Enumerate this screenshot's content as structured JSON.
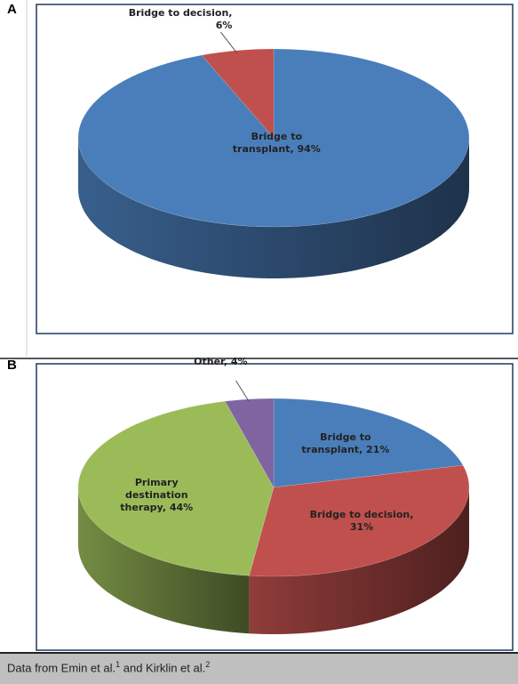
{
  "chart_data": [
    {
      "type": "pie",
      "panel": "A",
      "values": [
        94,
        6
      ],
      "value_labels": [
        "Bridge to transplant, 94%",
        "Bridge to decision, 6%"
      ],
      "colors": [
        "#4a7ebb",
        "#c0504d"
      ]
    },
    {
      "type": "pie",
      "panel": "B",
      "values": [
        21,
        31,
        44,
        4
      ],
      "value_labels": [
        "Bridge to transplant, 21%",
        "Bridge to decision, 31%",
        "Primary destination therapy, 44%",
        "Other, 4%"
      ],
      "colors": [
        "#4a7ebb",
        "#c0504d",
        "#9bbb59",
        "#8064a2"
      ]
    }
  ],
  "footnote": {
    "text1": "Data from Emin et al.",
    "ref1": "1",
    "text2": " and Kirklin et al.",
    "ref2": "2"
  }
}
